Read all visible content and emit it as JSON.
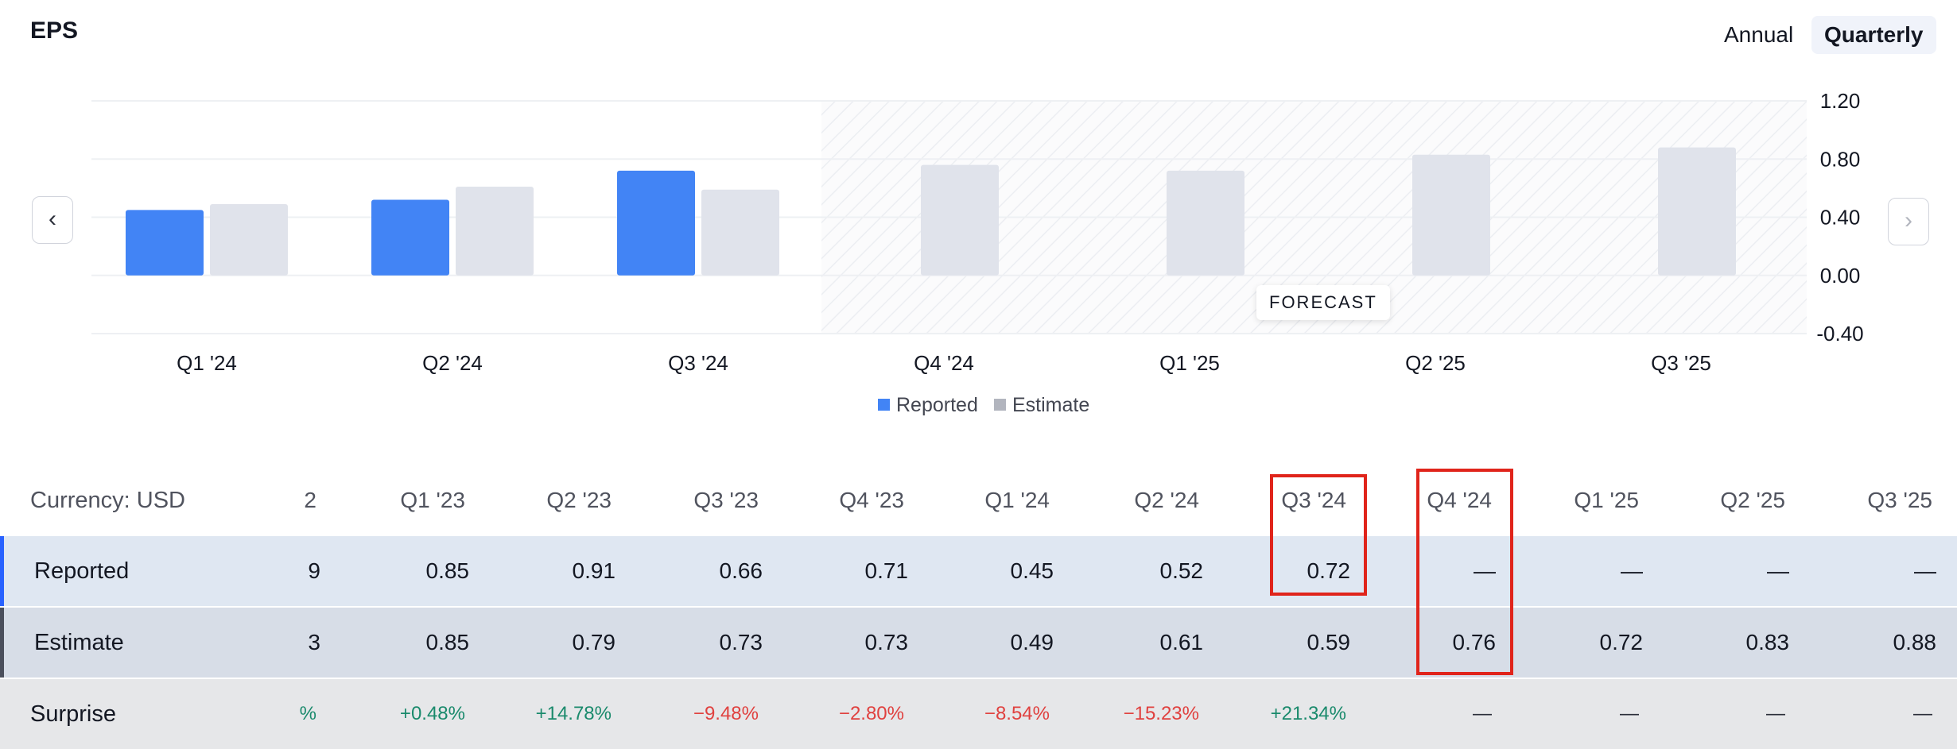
{
  "header": {
    "title": "EPS",
    "annual_label": "Annual",
    "quarterly_label": "Quarterly"
  },
  "navigation": {
    "prev": "‹",
    "next": "›"
  },
  "chart_data": {
    "type": "bar",
    "categories": [
      "Q1 '24",
      "Q2 '24",
      "Q3 '24",
      "Q4 '24",
      "Q1 '25",
      "Q2 '25",
      "Q3 '25"
    ],
    "series": [
      {
        "name": "Reported",
        "values": [
          0.45,
          0.52,
          0.72,
          null,
          null,
          null,
          null
        ],
        "color": "#4284f5"
      },
      {
        "name": "Estimate",
        "values": [
          0.49,
          0.61,
          0.59,
          0.76,
          0.72,
          0.83,
          0.88
        ],
        "color": "#e0e3eb"
      }
    ],
    "yticks": [
      "1.20",
      "0.80",
      "0.40",
      "0.00",
      "-0.40"
    ],
    "ylim": [
      -0.4,
      1.2
    ],
    "forecast_label": "FORECAST",
    "forecast_start_category": "Q4 '24",
    "legend_position": "bottom"
  },
  "table": {
    "currency_label": "Currency: USD",
    "columns": [
      "2",
      "Q1 '23",
      "Q2 '23",
      "Q3 '23",
      "Q4 '23",
      "Q1 '24",
      "Q2 '24",
      "Q3 '24",
      "Q4 '24",
      "Q1 '25",
      "Q2 '25",
      "Q3 '25"
    ],
    "rows": [
      {
        "label": "Reported",
        "values": [
          "9",
          "0.85",
          "0.91",
          "0.66",
          "0.71",
          "0.45",
          "0.52",
          "0.72",
          "—",
          "—",
          "—",
          "—"
        ]
      },
      {
        "label": "Estimate",
        "values": [
          "3",
          "0.85",
          "0.79",
          "0.73",
          "0.73",
          "0.49",
          "0.61",
          "0.59",
          "0.76",
          "0.72",
          "0.83",
          "0.88"
        ]
      },
      {
        "label": "Surprise",
        "values": [
          "%",
          "+0.48%",
          "+14.78%",
          "−9.48%",
          "−2.80%",
          "−8.54%",
          "−15.23%",
          "+21.34%",
          "—",
          "—",
          "—",
          "—"
        ]
      }
    ]
  },
  "colors": {
    "positive": "#1a8a6c",
    "negative": "#e0413f",
    "highlight": "#e0241b",
    "reported": "#4284f5",
    "estimate": "#e0e3eb"
  }
}
